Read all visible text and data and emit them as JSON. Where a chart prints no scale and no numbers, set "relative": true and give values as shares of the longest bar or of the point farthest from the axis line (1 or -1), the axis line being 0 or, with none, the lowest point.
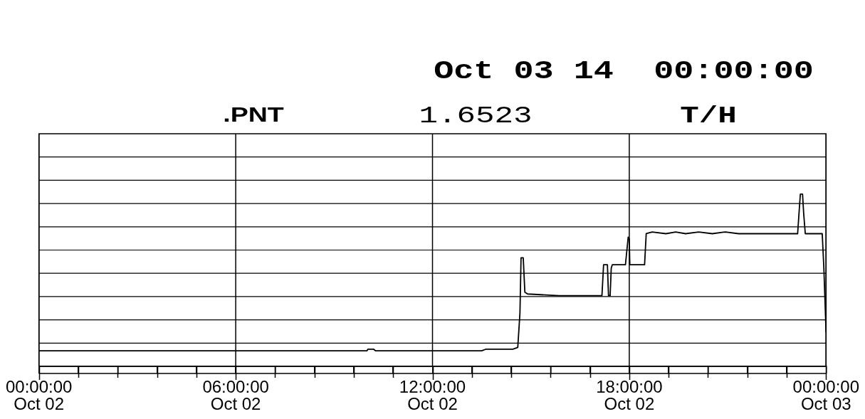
{
  "chart_data": {
    "type": "line",
    "title": "Oct 03 14  00:00:00",
    "annotations": [
      ".PNT",
      "1.6523",
      "T/H"
    ],
    "relative": true,
    "grid": true,
    "xlim": [
      "--10-02T00:00",
      "--10-03T00:00"
    ],
    "xticks": [
      {
        "value": "--10-02T00:00",
        "label": "00:00:00\nOct 02"
      },
      {
        "value": "--10-02T01:12",
        "label": null
      },
      {
        "value": "--10-02T02:24",
        "label": null
      },
      {
        "value": "--10-02T03:36",
        "label": null
      },
      {
        "value": "--10-02T04:48",
        "label": null
      },
      {
        "value": "--10-02T06:00",
        "label": "06:00:00\nOct 02"
      },
      {
        "value": "--10-02T07:12",
        "label": null
      },
      {
        "value": "--10-02T08:24",
        "label": null
      },
      {
        "value": "--10-02T09:36",
        "label": null
      },
      {
        "value": "--10-02T10:48",
        "label": null
      },
      {
        "value": "--10-02T12:00",
        "label": "12:00:00\nOct 02"
      },
      {
        "value": "--10-02T13:12",
        "label": null
      },
      {
        "value": "--10-02T14:24",
        "label": null
      },
      {
        "value": "--10-02T15:36",
        "label": null
      },
      {
        "value": "--10-02T16:48",
        "label": null
      },
      {
        "value": "--10-02T18:00",
        "label": "18:00:00\nOct 02"
      },
      {
        "value": "--10-02T19:12",
        "label": null
      },
      {
        "value": "--10-02T20:24",
        "label": null
      },
      {
        "value": "--10-02T21:36",
        "label": null
      },
      {
        "value": "--10-02T22:48",
        "label": null
      },
      {
        "value": "--10-03T00:00",
        "label": "00:00:00\nOct 03"
      }
    ],
    "x": [
      "--10-02T00:00",
      "--10-02T10:00",
      "--10-02T10:02",
      "--10-02T10:12",
      "--10-02T10:16",
      "--10-02T13:30",
      "--10-02T13:38",
      "--10-02T14:27",
      "--10-02T14:36",
      "--10-02T14:40",
      "--10-02T14:42",
      "--10-02T14:46",
      "--10-02T14:49",
      "--10-02T14:54",
      "--10-02T15:52",
      "--10-02T16:29",
      "--10-02T17:10",
      "--10-02T17:13",
      "--10-02T17:20",
      "--10-02T17:22",
      "--10-02T17:25",
      "--10-02T17:27",
      "--10-02T17:29",
      "--10-02T17:53",
      "--10-02T17:58",
      "--10-02T18:00",
      "--10-02T18:01",
      "--10-02T18:28",
      "--10-02T18:31",
      "--10-02T18:42",
      "--10-02T19:07",
      "--10-02T19:25",
      "--10-02T19:43",
      "--10-02T20:07",
      "--10-02T20:32",
      "--10-02T20:56",
      "--10-02T21:20",
      "--10-02T21:44",
      "--10-02T22:09",
      "--10-02T22:33",
      "--10-02T22:58",
      "--10-02T23:08",
      "--10-02T23:11",
      "--10-02T23:13",
      "--10-02T23:17",
      "--10-02T23:19",
      "--10-02T23:22",
      "--10-02T23:53",
      "--10-02T23:56",
      "--10-03T00:00"
    ],
    "series": [
      {
        "color": "#000000",
        "values": [
          0.09,
          0.09,
          0.1,
          0.1,
          0.09,
          0.09,
          0.1,
          0.1,
          0.11,
          0.31,
          0.63,
          0.63,
          0.43,
          0.42,
          0.41,
          0.41,
          0.41,
          0.59,
          0.59,
          0.41,
          0.41,
          0.57,
          0.59,
          0.59,
          0.75,
          0.74,
          0.59,
          0.59,
          0.77,
          0.78,
          0.77,
          0.78,
          0.77,
          0.78,
          0.77,
          0.78,
          0.77,
          0.77,
          0.77,
          0.77,
          0.77,
          0.77,
          0.91,
          1.0,
          1.0,
          0.89,
          0.77,
          0.77,
          0.57,
          0.2
        ]
      }
    ]
  }
}
